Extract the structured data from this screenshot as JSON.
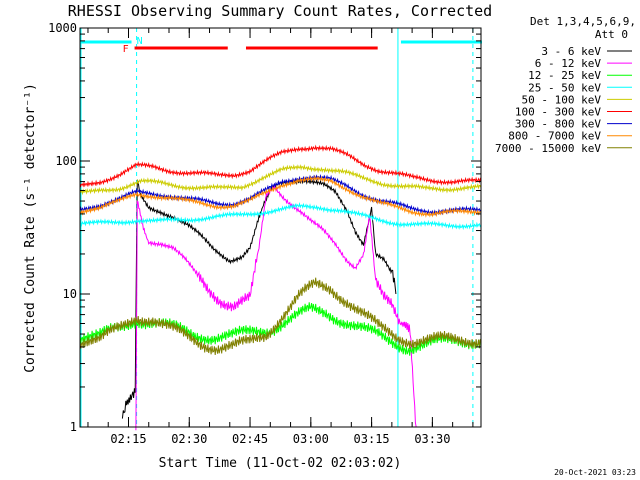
{
  "chart_data": {
    "type": "line",
    "title": "RHESSI Observing Summary Count Rates, Corrected",
    "xlabel": "Start Time (11-Oct-02 02:03:02)",
    "ylabel": "Corrected Count Rate (s⁻¹ detector⁻¹)",
    "y_scale": "log",
    "ylim": [
      1,
      1000
    ],
    "y_ticks": [
      "1",
      "10",
      "100",
      "1000"
    ],
    "xlim": [
      "02:03:02",
      "03:42:00"
    ],
    "x_ticks": [
      "02:15",
      "02:30",
      "02:45",
      "03:00",
      "03:15",
      "03:30"
    ],
    "legend_header": [
      "Det 1,3,4,5,6,9,",
      "Att 0"
    ],
    "legend_placement": "right",
    "footer": "20-Oct-2021 03:23",
    "markers": {
      "F_label": "F",
      "N_label": "N",
      "night_marker_color": "#00ffff",
      "flare_marker_color": "#ff0000",
      "night_bars": [
        [
          "02:03:02",
          "02:15:30"
        ],
        [
          "03:22:00",
          "03:42:00"
        ]
      ],
      "flare_bars": [
        [
          "02:16:30",
          "02:39:30"
        ],
        [
          "02:44:00",
          "03:16:30"
        ]
      ],
      "dashed_lines": [
        "02:17:00",
        "03:40:00"
      ],
      "solid_lines": [
        "02:03:02",
        "03:21:30"
      ]
    },
    "series": [
      {
        "name": "3 - 6 keV",
        "color": "#000000",
        "points": [
          [
            "02:13:30",
            1.25
          ],
          [
            "02:14:20",
            1.6
          ],
          [
            "02:15:40",
            1.8
          ],
          [
            "02:16:40",
            2.0
          ],
          [
            "02:17:10",
            70
          ],
          [
            "02:18:00",
            55
          ],
          [
            "02:20:00",
            45
          ],
          [
            "02:23:00",
            42
          ],
          [
            "02:26:00",
            38
          ],
          [
            "02:30:00",
            32
          ],
          [
            "02:33:00",
            27
          ],
          [
            "02:36:00",
            22
          ],
          [
            "02:40:00",
            18
          ],
          [
            "02:43:00",
            19
          ],
          [
            "02:45:00",
            22
          ],
          [
            "02:47:00",
            35
          ],
          [
            "02:48:30",
            50
          ],
          [
            "02:50:00",
            60
          ],
          [
            "02:52:00",
            68
          ],
          [
            "02:55:00",
            72
          ],
          [
            "02:58:00",
            72
          ],
          [
            "03:00:00",
            70
          ],
          [
            "03:03:00",
            66
          ],
          [
            "03:06:00",
            58
          ],
          [
            "03:09:00",
            42
          ],
          [
            "03:11:00",
            30
          ],
          [
            "03:13:00",
            24
          ],
          [
            "03:15:00",
            45
          ],
          [
            "03:16:00",
            20
          ],
          [
            "03:18:00",
            18
          ],
          [
            "03:20:00",
            14
          ],
          [
            "03:21:00",
            10
          ]
        ]
      },
      {
        "name": "6 - 12 keV",
        "color": "#ff00ff",
        "points": [
          [
            "02:16:50",
            1.0
          ],
          [
            "02:17:10",
            50
          ],
          [
            "02:18:30",
            32
          ],
          [
            "02:20:00",
            25
          ],
          [
            "02:23:00",
            24
          ],
          [
            "02:26:00",
            22
          ],
          [
            "02:29:00",
            18
          ],
          [
            "02:32:00",
            14
          ],
          [
            "02:35:00",
            11
          ],
          [
            "02:38:00",
            9
          ],
          [
            "02:41:00",
            8
          ],
          [
            "02:43:00",
            8.5
          ],
          [
            "02:45:00",
            9
          ],
          [
            "02:47:00",
            20
          ],
          [
            "02:49:00",
            55
          ],
          [
            "02:51:00",
            65
          ],
          [
            "02:53:00",
            55
          ],
          [
            "02:55:00",
            48
          ],
          [
            "02:58:00",
            40
          ],
          [
            "03:00:00",
            35
          ],
          [
            "03:03:00",
            30
          ],
          [
            "03:06:00",
            24
          ],
          [
            "03:09:00",
            18
          ],
          [
            "03:11:00",
            16
          ],
          [
            "03:13:00",
            20
          ],
          [
            "03:14:30",
            40
          ],
          [
            "03:16:00",
            12
          ],
          [
            "03:18:00",
            9
          ],
          [
            "03:20:00",
            8
          ],
          [
            "03:22:00",
            6
          ],
          [
            "03:24:30",
            5
          ],
          [
            "03:26:00",
            1.0
          ]
        ]
      },
      {
        "name": "12 - 25 keV",
        "color": "#00ff00",
        "points": [
          [
            "02:03:02",
            4.5
          ],
          [
            "02:08:00",
            4.8
          ],
          [
            "02:13:00",
            5.5
          ],
          [
            "02:17:00",
            6.5
          ],
          [
            "02:21:00",
            6.2
          ],
          [
            "02:26:00",
            5.5
          ],
          [
            "02:31:00",
            5.0
          ],
          [
            "02:36:00",
            4.8
          ],
          [
            "02:41:00",
            4.8
          ],
          [
            "02:46:00",
            5.2
          ],
          [
            "02:50:00",
            5.5
          ],
          [
            "02:55:00",
            6.5
          ],
          [
            "03:00:00",
            7.5
          ],
          [
            "03:04:00",
            7.2
          ],
          [
            "03:09:00",
            6.2
          ],
          [
            "03:14:00",
            5.2
          ],
          [
            "03:19:00",
            4.5
          ],
          [
            "03:24:00",
            4.0
          ],
          [
            "03:30:00",
            4.2
          ],
          [
            "03:36:00",
            4.5
          ],
          [
            "03:42:00",
            4.5
          ]
        ]
      },
      {
        "name": "25 - 50 keV",
        "color": "#00ffff",
        "points": [
          [
            "02:03:02",
            33
          ],
          [
            "02:08:00",
            34
          ],
          [
            "02:13:00",
            35
          ],
          [
            "02:17:00",
            36
          ],
          [
            "02:22:00",
            35
          ],
          [
            "02:27:00",
            36
          ],
          [
            "02:32:00",
            37
          ],
          [
            "02:37:00",
            38
          ],
          [
            "02:42:00",
            39
          ],
          [
            "02:47:00",
            41
          ],
          [
            "02:52:00",
            43
          ],
          [
            "02:57:00",
            45
          ],
          [
            "03:02:00",
            45
          ],
          [
            "03:07:00",
            43
          ],
          [
            "03:12:00",
            39
          ],
          [
            "03:17:00",
            36
          ],
          [
            "03:22:00",
            34
          ],
          [
            "03:27:00",
            33
          ],
          [
            "03:32:00",
            33
          ],
          [
            "03:37:00",
            33
          ],
          [
            "03:42:00",
            33
          ]
        ]
      },
      {
        "name": "50 - 100 keV",
        "color": "#cccc00",
        "points": [
          [
            "02:03:02",
            57
          ],
          [
            "02:08:00",
            60
          ],
          [
            "02:13:00",
            63
          ],
          [
            "02:18:00",
            70
          ],
          [
            "02:23:00",
            68
          ],
          [
            "02:28:00",
            65
          ],
          [
            "02:33:00",
            63
          ],
          [
            "02:38:00",
            62
          ],
          [
            "02:43:00",
            64
          ],
          [
            "02:48:00",
            75
          ],
          [
            "02:53:00",
            85
          ],
          [
            "02:58:00",
            90
          ],
          [
            "03:03:00",
            88
          ],
          [
            "03:08:00",
            82
          ],
          [
            "03:13:00",
            74
          ],
          [
            "03:18:00",
            68
          ],
          [
            "03:23:00",
            64
          ],
          [
            "03:28:00",
            62
          ],
          [
            "03:33:00",
            62
          ],
          [
            "03:38:00",
            63
          ],
          [
            "03:42:00",
            63
          ]
        ]
      },
      {
        "name": "100 - 300 keV",
        "color": "#ff0000",
        "points": [
          [
            "02:03:02",
            66
          ],
          [
            "02:08:00",
            70
          ],
          [
            "02:13:00",
            80
          ],
          [
            "02:17:00",
            92
          ],
          [
            "02:21:00",
            90
          ],
          [
            "02:25:00",
            85
          ],
          [
            "02:29:00",
            82
          ],
          [
            "02:33:00",
            80
          ],
          [
            "02:37:00",
            78
          ],
          [
            "02:41:00",
            79
          ],
          [
            "02:45:00",
            85
          ],
          [
            "02:49:00",
            100
          ],
          [
            "02:53:00",
            115
          ],
          [
            "02:57:00",
            125
          ],
          [
            "03:01:00",
            128
          ],
          [
            "03:05:00",
            122
          ],
          [
            "03:09:00",
            110
          ],
          [
            "03:13:00",
            95
          ],
          [
            "03:17:00",
            85
          ],
          [
            "03:21:00",
            80
          ],
          [
            "03:25:00",
            75
          ],
          [
            "03:30:00",
            72
          ],
          [
            "03:35:00",
            70
          ],
          [
            "03:42:00",
            70
          ]
        ]
      },
      {
        "name": "300 - 800 keV",
        "color": "#0000cc",
        "points": [
          [
            "02:03:02",
            44
          ],
          [
            "02:08:00",
            47
          ],
          [
            "02:13:00",
            52
          ],
          [
            "02:17:00",
            58
          ],
          [
            "02:21:00",
            57
          ],
          [
            "02:25:00",
            55
          ],
          [
            "02:29:00",
            52
          ],
          [
            "02:33:00",
            50
          ],
          [
            "02:37:00",
            48
          ],
          [
            "02:41:00",
            48
          ],
          [
            "02:45:00",
            52
          ],
          [
            "02:49:00",
            60
          ],
          [
            "02:53:00",
            70
          ],
          [
            "02:57:00",
            75
          ],
          [
            "03:01:00",
            75
          ],
          [
            "03:05:00",
            72
          ],
          [
            "03:09:00",
            65
          ],
          [
            "03:13:00",
            56
          ],
          [
            "03:17:00",
            50
          ],
          [
            "03:21:00",
            47
          ],
          [
            "03:25:00",
            44
          ],
          [
            "03:30:00",
            42
          ],
          [
            "03:35:00",
            42
          ],
          [
            "03:42:00",
            43
          ]
        ]
      },
      {
        "name": "800 - 7000 keV",
        "color": "#ff8800",
        "points": [
          [
            "02:03:02",
            42
          ],
          [
            "02:08:00",
            45
          ],
          [
            "02:13:00",
            50
          ],
          [
            "02:17:00",
            56
          ],
          [
            "02:21:00",
            55
          ],
          [
            "02:25:00",
            53
          ],
          [
            "02:29:00",
            50
          ],
          [
            "02:33:00",
            48
          ],
          [
            "02:37:00",
            46
          ],
          [
            "02:41:00",
            46
          ],
          [
            "02:45:00",
            50
          ],
          [
            "02:49:00",
            58
          ],
          [
            "02:53:00",
            67
          ],
          [
            "02:57:00",
            72
          ],
          [
            "03:01:00",
            72
          ],
          [
            "03:05:00",
            70
          ],
          [
            "03:09:00",
            62
          ],
          [
            "03:13:00",
            54
          ],
          [
            "03:17:00",
            48
          ],
          [
            "03:21:00",
            45
          ],
          [
            "03:25:00",
            42
          ],
          [
            "03:30:00",
            40
          ],
          [
            "03:35:00",
            41
          ],
          [
            "03:42:00",
            42
          ]
        ]
      },
      {
        "name": "7000 - 15000 keV",
        "color": "#808000",
        "points": [
          [
            "02:03:02",
            4.2
          ],
          [
            "02:08:00",
            4.5
          ],
          [
            "02:13:00",
            5.5
          ],
          [
            "02:17:00",
            6.8
          ],
          [
            "02:21:00",
            6.5
          ],
          [
            "02:25:00",
            5.5
          ],
          [
            "02:29:00",
            4.8
          ],
          [
            "02:33:00",
            4.3
          ],
          [
            "02:37:00",
            4.0
          ],
          [
            "02:41:00",
            4.0
          ],
          [
            "02:45:00",
            4.3
          ],
          [
            "02:49:00",
            5.0
          ],
          [
            "02:53:00",
            7.0
          ],
          [
            "02:57:00",
            9.5
          ],
          [
            "03:01:00",
            11.5
          ],
          [
            "03:05:00",
            11.0
          ],
          [
            "03:09:00",
            9.0
          ],
          [
            "03:13:00",
            7.0
          ],
          [
            "03:17:00",
            5.5
          ],
          [
            "03:21:00",
            4.8
          ],
          [
            "03:25:00",
            4.5
          ],
          [
            "03:30:00",
            4.5
          ],
          [
            "03:35:00",
            4.5
          ],
          [
            "03:42:00",
            4.6
          ]
        ]
      }
    ]
  }
}
